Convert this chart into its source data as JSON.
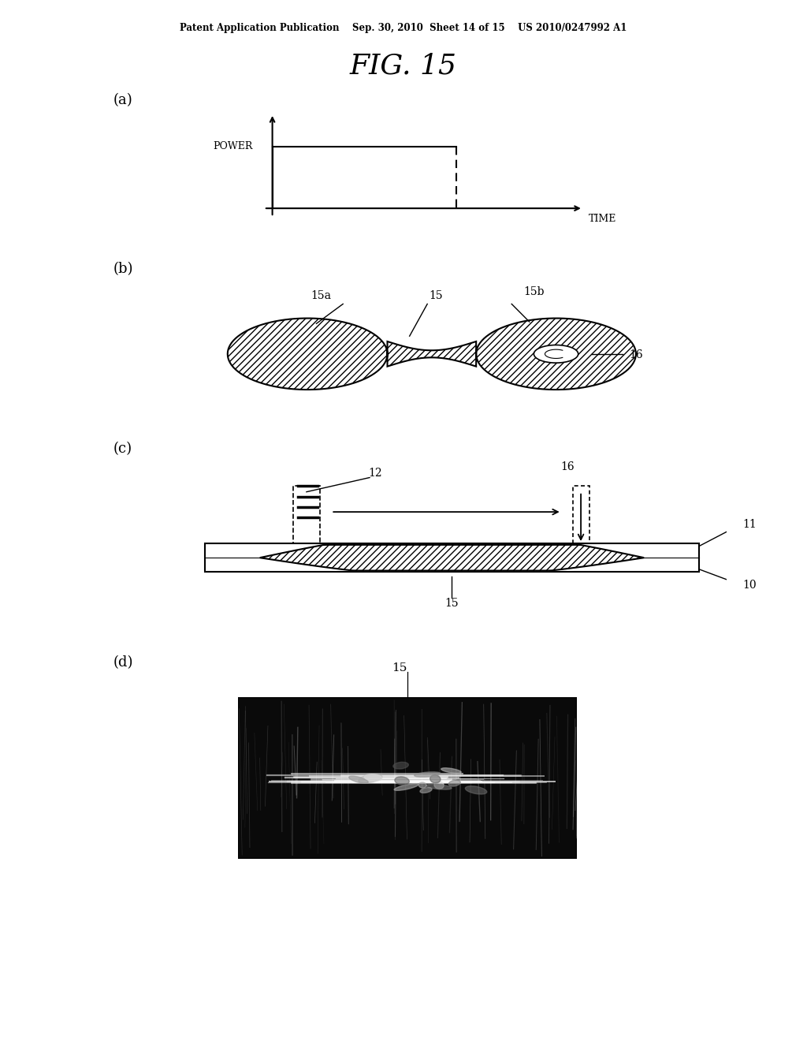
{
  "bg_color": "#ffffff",
  "header": "Patent Application Publication    Sep. 30, 2010  Sheet 14 of 15    US 2010/0247992 A1",
  "title": "FIG. 15",
  "panel_labels": [
    "(a)",
    "(b)",
    "(c)",
    "(d)"
  ],
  "panel_a_ylabel": "POWER",
  "panel_a_xlabel": "TIME"
}
